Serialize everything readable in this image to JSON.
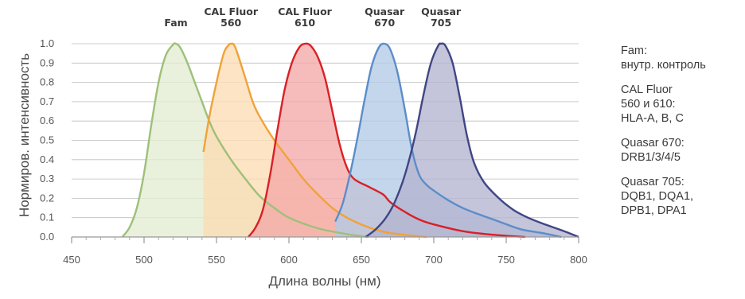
{
  "chart_data": {
    "type": "area",
    "xlabel": "Длина волны (нм)",
    "ylabel": "Нормиров. интенсивность",
    "xlim": [
      450,
      800
    ],
    "ylim": [
      0,
      1.0
    ],
    "xticks": [
      "450",
      "500",
      "550",
      "600",
      "650",
      "700",
      "750",
      "800"
    ],
    "yticks": [
      "0.0",
      "0.1",
      "0.2",
      "0.3",
      "0.4",
      "0.5",
      "0.6",
      "0.7",
      "0.8",
      "0.9",
      "1.0"
    ],
    "grid": true,
    "series": [
      {
        "name": "Fam",
        "label_lines": [
          "Fam"
        ],
        "color": "#9dc07a",
        "fill": "#e3ecd2",
        "x": [
          485,
          490,
          495,
          500,
          505,
          510,
          515,
          520,
          522,
          525,
          530,
          535,
          540,
          545,
          550,
          560,
          570,
          580,
          590,
          600,
          620,
          640,
          655
        ],
        "y": [
          0.0,
          0.05,
          0.15,
          0.33,
          0.58,
          0.8,
          0.94,
          0.995,
          1.0,
          0.98,
          0.9,
          0.8,
          0.7,
          0.6,
          0.52,
          0.4,
          0.3,
          0.21,
          0.15,
          0.1,
          0.045,
          0.015,
          0.0
        ]
      },
      {
        "name": "CAL Fluor 560",
        "label_lines": [
          "CAL Fluor",
          "560"
        ],
        "color": "#f0a23a",
        "fill": "#fbdcb4",
        "x": [
          541,
          545,
          550,
          555,
          558,
          560,
          563,
          570,
          575,
          580,
          590,
          600,
          610,
          620,
          630,
          640,
          655,
          670,
          695
        ],
        "y": [
          0.44,
          0.62,
          0.8,
          0.95,
          0.99,
          1.0,
          0.98,
          0.82,
          0.7,
          0.62,
          0.5,
          0.4,
          0.3,
          0.22,
          0.15,
          0.1,
          0.05,
          0.02,
          0.0
        ]
      },
      {
        "name": "CAL Fluor 610",
        "label_lines": [
          "CAL Fluor",
          "610"
        ],
        "color": "#d92026",
        "fill": "#f4a9a8",
        "x": [
          572,
          577,
          582,
          587,
          592,
          597,
          602,
          607,
          611,
          615,
          620,
          625,
          630,
          635,
          640,
          645,
          655,
          665,
          670,
          680,
          690,
          700,
          720,
          740,
          763
        ],
        "y": [
          0.0,
          0.05,
          0.14,
          0.32,
          0.55,
          0.76,
          0.9,
          0.98,
          1.0,
          0.99,
          0.93,
          0.82,
          0.65,
          0.48,
          0.36,
          0.3,
          0.26,
          0.22,
          0.18,
          0.13,
          0.09,
          0.065,
          0.03,
          0.012,
          0.0
        ]
      },
      {
        "name": "Quasar 670",
        "label_lines": [
          "Quasar",
          "670"
        ],
        "color": "#5b8dc8",
        "fill": "#b3cbe6",
        "x": [
          632,
          637,
          642,
          647,
          652,
          657,
          662,
          666,
          670,
          675,
          680,
          685,
          690,
          695,
          700,
          710,
          720,
          730,
          745,
          760,
          775,
          788
        ],
        "y": [
          0.08,
          0.17,
          0.32,
          0.5,
          0.7,
          0.88,
          0.98,
          1.0,
          0.97,
          0.85,
          0.66,
          0.45,
          0.32,
          0.27,
          0.24,
          0.19,
          0.15,
          0.12,
          0.08,
          0.04,
          0.02,
          0.0
        ]
      },
      {
        "name": "Quasar 705",
        "label_lines": [
          "Quasar",
          "705"
        ],
        "color": "#3f4684",
        "fill": "#b4b4cf",
        "x": [
          653,
          660,
          667,
          673,
          680,
          687,
          693,
          698,
          703,
          705,
          708,
          713,
          718,
          723,
          728,
          735,
          745,
          755,
          765,
          775,
          790,
          800
        ],
        "y": [
          0.0,
          0.04,
          0.1,
          0.18,
          0.32,
          0.52,
          0.74,
          0.9,
          0.99,
          1.0,
          0.99,
          0.9,
          0.72,
          0.52,
          0.38,
          0.28,
          0.2,
          0.14,
          0.1,
          0.07,
          0.03,
          0.0
        ]
      }
    ]
  },
  "notes": [
    "Fam:\nвнутр. контроль",
    "CAL Fluor\n560 и 610:\nHLA-A, B, C",
    "Quasar 670:\nDRB1/3/4/5",
    "Quasar 705:\nDQB1, DQA1,\nDPB1, DPA1"
  ]
}
